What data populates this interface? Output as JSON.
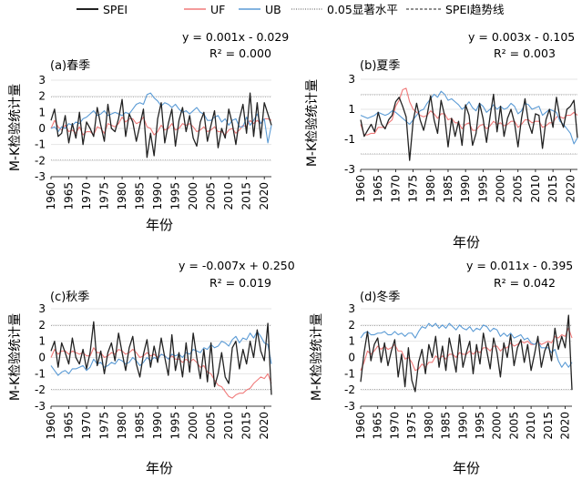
{
  "legend": [
    {
      "label": "SPEI",
      "color": "#222222",
      "style": "solid"
    },
    {
      "label": "UF",
      "color": "#f07a7a",
      "style": "solid"
    },
    {
      "label": "UB",
      "color": "#5b9bd5",
      "style": "solid"
    },
    {
      "label": "0.05显著水平",
      "color": "#555555",
      "style": "dotted"
    },
    {
      "label": "SPEI趋势线",
      "color": "#222222",
      "style": "dashed"
    }
  ],
  "chart_data": [
    {
      "type": "line",
      "panel_label": "(a)春季",
      "equation": "y = 0.001x - 0.029",
      "r2": "R² = 0.000",
      "ylabel": "M-K检验统计量",
      "xlabel": "年份",
      "ylim": [
        -3,
        3
      ],
      "yticks": [
        "3",
        "2",
        "1",
        "0",
        "-1",
        "-2",
        "-3"
      ],
      "xticks": [
        "1960",
        "1965",
        "1970",
        "1975",
        "1980",
        "1985",
        "1990",
        "1995",
        "2000",
        "2005",
        "2010",
        "2015",
        "2020"
      ],
      "x_start": 1960,
      "series": [
        {
          "name": "SPEI",
          "values": [
            0.5,
            1.2,
            -0.5,
            -0.3,
            0.8,
            -0.9,
            0.3,
            -0.6,
            1.0,
            -1.0,
            0.4,
            0.0,
            -0.5,
            1.3,
            0.2,
            -0.8,
            1.5,
            0.0,
            -0.2,
            0.6,
            1.8,
            -0.5,
            0.9,
            0.4,
            -0.8,
            0.2,
            1.2,
            -1.8,
            -0.3,
            -1.7,
            0.6,
            1.6,
            -0.9,
            0.3,
            1.2,
            -1.1,
            0.5,
            1.3,
            -0.2,
            0.8,
            -0.6,
            -1.1,
            0.4,
            1.0,
            -0.8,
            0.2,
            1.1,
            -1.2,
            0.0,
            -0.6,
            1.2,
            0.3,
            -1.0,
            0.6,
            1.5,
            -0.3,
            2.2,
            -0.5,
            1.6,
            -0.6,
            1.6,
            0.9,
            0.2
          ]
        },
        {
          "name": "UF",
          "values": [
            0.0,
            0.5,
            0.1,
            -0.1,
            0.2,
            -0.2,
            -0.1,
            -0.3,
            0.1,
            -0.4,
            -0.2,
            -0.2,
            -0.4,
            0.1,
            0.0,
            -0.3,
            0.3,
            0.2,
            0.1,
            0.3,
            0.7,
            0.4,
            0.6,
            0.6,
            0.3,
            0.4,
            0.7,
            0.1,
            0.0,
            -0.4,
            -0.2,
            0.2,
            -0.1,
            0.0,
            0.3,
            -0.1,
            0.0,
            0.3,
            0.2,
            0.3,
            0.1,
            -0.2,
            -0.1,
            0.1,
            -0.2,
            -0.1,
            0.1,
            -0.2,
            -0.2,
            -0.4,
            -0.1,
            0.0,
            -0.3,
            -0.1,
            0.2,
            0.1,
            0.5,
            0.3,
            0.5,
            0.3,
            0.6,
            0.6,
            0.5
          ]
        },
        {
          "name": "UB",
          "values": [
            0.0,
            0.1,
            -0.2,
            0.1,
            0.0,
            0.3,
            0.2,
            0.4,
            0.3,
            0.6,
            0.7,
            0.9,
            1.1,
            0.8,
            0.9,
            1.1,
            0.8,
            0.9,
            1.0,
            0.9,
            0.8,
            1.0,
            0.9,
            1.2,
            1.5,
            1.6,
            1.5,
            2.1,
            2.2,
            1.9,
            1.7,
            1.4,
            1.6,
            1.5,
            1.3,
            1.5,
            1.2,
            1.0,
            1.1,
            0.9,
            1.1,
            1.3,
            1.0,
            0.9,
            0.5,
            0.5,
            0.7,
            0.8,
            0.4,
            0.6,
            0.2,
            0.5,
            0.6,
            0.1,
            0.1,
            0.7,
            0.2,
            0.5,
            0.9,
            0.3,
            0.6,
            -0.9,
            0.2
          ]
        }
      ]
    },
    {
      "type": "line",
      "panel_label": "(b)夏季",
      "equation": "y = 0.003x - 0.105",
      "r2": "R² = 0.003",
      "ylabel": "M-K检验统计量",
      "xlabel": "年份",
      "ylim": [
        -3,
        3
      ],
      "yticks": [
        "3",
        "1",
        "-1",
        "-3"
      ],
      "xticks": [
        "1960",
        "1965",
        "1970",
        "1975",
        "1980",
        "1985",
        "1990",
        "1995",
        "2000",
        "2005",
        "2010",
        "2015",
        "2020"
      ],
      "x_start": 1960,
      "series": [
        {
          "name": "SPEI",
          "values": [
            0.3,
            -0.8,
            -0.4,
            0.0,
            -0.5,
            0.8,
            0.0,
            -0.3,
            0.3,
            0.6,
            1.5,
            1.8,
            1.2,
            0.5,
            -2.4,
            0.2,
            1.4,
            0.3,
            -0.4,
            0.6,
            1.9,
            0.3,
            -0.6,
            1.6,
            0.6,
            -1.5,
            0.4,
            -0.8,
            0.2,
            -1.4,
            1.3,
            0.6,
            -1.4,
            -0.6,
            1.4,
            0.4,
            -1.2,
            0.5,
            2.0,
            -0.5,
            1.2,
            -0.8,
            0.4,
            1.0,
            0.1,
            -1.5,
            0.4,
            1.7,
            0.1,
            -0.6,
            0.7,
            0.6,
            -1.6,
            0.3,
            1.0,
            -0.2,
            1.8,
            0.4,
            -0.2,
            1.0,
            1.2,
            1.6,
            -0.9
          ]
        },
        {
          "name": "UF",
          "values": [
            0.0,
            -0.7,
            -0.7,
            -0.6,
            -0.6,
            -0.2,
            -0.2,
            -0.2,
            0.1,
            0.3,
            1.2,
            1.6,
            2.3,
            2.4,
            1.5,
            1.0,
            0.8,
            0.6,
            0.5,
            0.6,
            0.9,
            0.7,
            0.4,
            0.7,
            0.7,
            0.3,
            0.4,
            0.1,
            0.1,
            -0.3,
            0.0,
            0.1,
            -0.4,
            -0.4,
            -0.1,
            0.0,
            -0.3,
            -0.1,
            0.2,
            0.0,
            0.1,
            -0.1,
            0.0,
            0.2,
            0.2,
            -0.2,
            0.0,
            0.3,
            0.3,
            0.1,
            0.2,
            0.2,
            -0.2,
            -0.1,
            0.1,
            0.1,
            0.5,
            0.5,
            0.4,
            0.6,
            0.6,
            0.8,
            0.6
          ]
        },
        {
          "name": "UB",
          "values": [
            0.6,
            0.5,
            0.4,
            0.5,
            0.6,
            0.8,
            0.7,
            0.6,
            0.7,
            0.9,
            0.8,
            0.6,
            0.4,
            0.2,
            0.0,
            0.3,
            0.6,
            0.9,
            1.0,
            1.4,
            1.7,
            2.0,
            1.8,
            2.2,
            2.0,
            1.6,
            1.7,
            1.5,
            1.3,
            1.0,
            1.2,
            1.5,
            1.1,
            0.9,
            1.4,
            1.2,
            0.8,
            1.0,
            1.3,
            1.0,
            1.2,
            1.0,
            1.1,
            1.4,
            1.2,
            0.7,
            0.9,
            1.4,
            1.3,
            1.0,
            1.1,
            1.2,
            0.6,
            0.8,
            1.0,
            0.9,
            0.8,
            0.2,
            0.0,
            -0.3,
            -0.6,
            -1.3,
            -0.9
          ]
        }
      ]
    },
    {
      "type": "line",
      "panel_label": "(c)秋季",
      "equation": "y = -0.007x + 0.250",
      "r2": "R² = 0.019",
      "ylabel": "M-K检验统计量",
      "xlabel": "年份",
      "ylim": [
        -3,
        3
      ],
      "yticks": [
        "3",
        "2",
        "1",
        "0",
        "-1",
        "-2",
        "-3"
      ],
      "xticks": [
        "1960",
        "1965",
        "1970",
        "1975",
        "1980",
        "1985",
        "1990",
        "1995",
        "2000",
        "2005",
        "2010",
        "2015",
        "2020"
      ],
      "x_start": 1960,
      "series": [
        {
          "name": "SPEI",
          "values": [
            0.4,
            1.0,
            -0.6,
            0.9,
            0.3,
            -0.4,
            1.2,
            0.0,
            -0.4,
            0.5,
            -0.7,
            0.3,
            2.2,
            -0.5,
            0.4,
            -1.0,
            0.3,
            0.9,
            -0.2,
            1.5,
            0.3,
            -0.8,
            0.6,
            1.3,
            -0.4,
            -1.2,
            0.2,
            1.1,
            -0.6,
            0.7,
            -0.3,
            1.2,
            0.0,
            -1.1,
            1.4,
            -0.8,
            0.3,
            -1.2,
            0.9,
            -0.9,
            1.5,
            0.0,
            -1.3,
            0.5,
            -1.5,
            0.9,
            -1.8,
            -1.0,
            0.3,
            -1.2,
            -1.6,
            0.6,
            1.0,
            -0.7,
            0.5,
            -0.4,
            1.0,
            0.0,
            1.7,
            0.4,
            -0.2,
            2.1,
            -2.3
          ]
        },
        {
          "name": "UF",
          "values": [
            0.0,
            0.5,
            0.2,
            0.4,
            0.4,
            0.2,
            0.4,
            0.3,
            0.2,
            0.3,
            0.1,
            0.1,
            0.6,
            0.3,
            0.3,
            0.0,
            0.1,
            0.3,
            0.2,
            0.5,
            0.4,
            0.2,
            0.3,
            0.5,
            0.3,
            0.0,
            0.1,
            0.3,
            0.1,
            0.2,
            0.0,
            0.2,
            0.1,
            -0.1,
            0.1,
            -0.1,
            -0.1,
            -0.3,
            -0.1,
            -0.3,
            -0.1,
            -0.3,
            -0.6,
            -0.5,
            -0.9,
            -1.0,
            -1.4,
            -1.7,
            -1.8,
            -2.1,
            -2.4,
            -2.5,
            -2.3,
            -2.2,
            -2.2,
            -2.0,
            -1.9,
            -1.6,
            -1.4,
            -1.2,
            -1.3,
            -1.0,
            -1.6
          ]
        },
        {
          "name": "UB",
          "values": [
            -0.5,
            -0.8,
            -1.1,
            -0.9,
            -0.8,
            -1.0,
            -0.7,
            -0.7,
            -0.6,
            -0.5,
            -0.8,
            -0.6,
            -0.1,
            -0.4,
            -0.3,
            -0.6,
            -0.5,
            -0.3,
            -0.4,
            -0.1,
            -0.2,
            -0.4,
            -0.3,
            0.0,
            -0.2,
            -0.5,
            -0.3,
            0.0,
            -0.2,
            0.0,
            -0.1,
            0.2,
            0.1,
            -0.1,
            0.2,
            0.1,
            0.2,
            0.0,
            0.3,
            0.2,
            0.5,
            0.4,
            0.3,
            0.6,
            0.5,
            0.8,
            0.6,
            0.7,
            1.0,
            0.9,
            0.7,
            1.1,
            1.3,
            0.9,
            1.2,
            1.1,
            1.5,
            1.2,
            1.6,
            1.3,
            0.9,
            0.8,
            -0.4
          ]
        }
      ]
    },
    {
      "type": "line",
      "panel_label": "(d)冬季",
      "equation": "y = 0.011x - 0.395",
      "r2": "R² = 0.042",
      "ylabel": "M-K检验统计量",
      "xlabel": "年份",
      "ylim": [
        -3,
        3
      ],
      "yticks": [
        "3",
        "2",
        "1",
        "0",
        "-1",
        "-2",
        "-3"
      ],
      "xticks": [
        "1960",
        "1965",
        "1970",
        "1975",
        "1980",
        "1985",
        "1990",
        "1995",
        "2000",
        "2005",
        "2010",
        "2015",
        "2020"
      ],
      "x_start": 1960,
      "series": [
        {
          "name": "SPEI",
          "values": [
            -1.5,
            0.3,
            1.6,
            -0.2,
            0.8,
            1.2,
            -0.3,
            0.9,
            -0.5,
            0.4,
            1.1,
            -1.2,
            0.2,
            -1.8,
            0.6,
            -1.4,
            -2.1,
            -0.3,
            0.5,
            -1.0,
            0.8,
            0.0,
            1.3,
            -0.6,
            0.7,
            -0.8,
            1.2,
            0.2,
            -0.9,
            1.4,
            -0.6,
            0.3,
            1.0,
            -1.0,
            0.8,
            -0.4,
            1.5,
            0.4,
            -0.7,
            1.2,
            0.3,
            -1.2,
            0.9,
            0.0,
            1.4,
            -0.5,
            0.6,
            1.1,
            -0.3,
            0.8,
            -0.8,
            0.2,
            1.3,
            -0.6,
            0.4,
            0.9,
            -0.2,
            1.8,
            0.5,
            1.3,
            0.6,
            2.6,
            -2.0
          ]
        },
        {
          "name": "UF",
          "values": [
            -0.8,
            -0.3,
            0.4,
            0.2,
            0.4,
            0.7,
            0.5,
            0.7,
            0.5,
            0.6,
            0.8,
            0.4,
            0.4,
            -0.1,
            0.0,
            -0.3,
            -0.8,
            -0.7,
            -0.4,
            -0.6,
            -0.3,
            -0.3,
            0.1,
            -0.1,
            0.1,
            -0.1,
            0.2,
            0.2,
            0.0,
            0.3,
            0.2,
            0.2,
            0.4,
            0.2,
            0.4,
            0.3,
            0.6,
            0.6,
            0.4,
            0.7,
            0.7,
            0.4,
            0.6,
            0.6,
            0.9,
            0.7,
            0.8,
            1.0,
            0.9,
            1.0,
            0.8,
            0.8,
            1.0,
            0.8,
            0.9,
            1.0,
            0.9,
            1.3,
            1.2,
            1.4,
            1.3,
            1.8,
            1.2
          ]
        },
        {
          "name": "UB",
          "values": [
            1.2,
            1.5,
            1.6,
            1.4,
            1.4,
            1.5,
            1.5,
            1.6,
            1.4,
            1.4,
            1.6,
            1.4,
            1.5,
            1.3,
            1.5,
            1.5,
            1.2,
            1.6,
            1.9,
            1.8,
            2.1,
            1.9,
            2.1,
            1.8,
            2.0,
            1.8,
            2.1,
            1.9,
            1.7,
            2.0,
            1.8,
            1.7,
            1.9,
            1.6,
            1.8,
            1.7,
            2.0,
            1.9,
            1.6,
            1.8,
            1.7,
            1.3,
            1.5,
            1.3,
            1.5,
            1.2,
            1.3,
            1.4,
            1.1,
            1.2,
            0.9,
            0.8,
            1.0,
            0.6,
            0.6,
            0.6,
            0.3,
            0.5,
            -0.2,
            -0.6,
            -0.3,
            -0.6,
            -0.3
          ]
        }
      ]
    }
  ]
}
